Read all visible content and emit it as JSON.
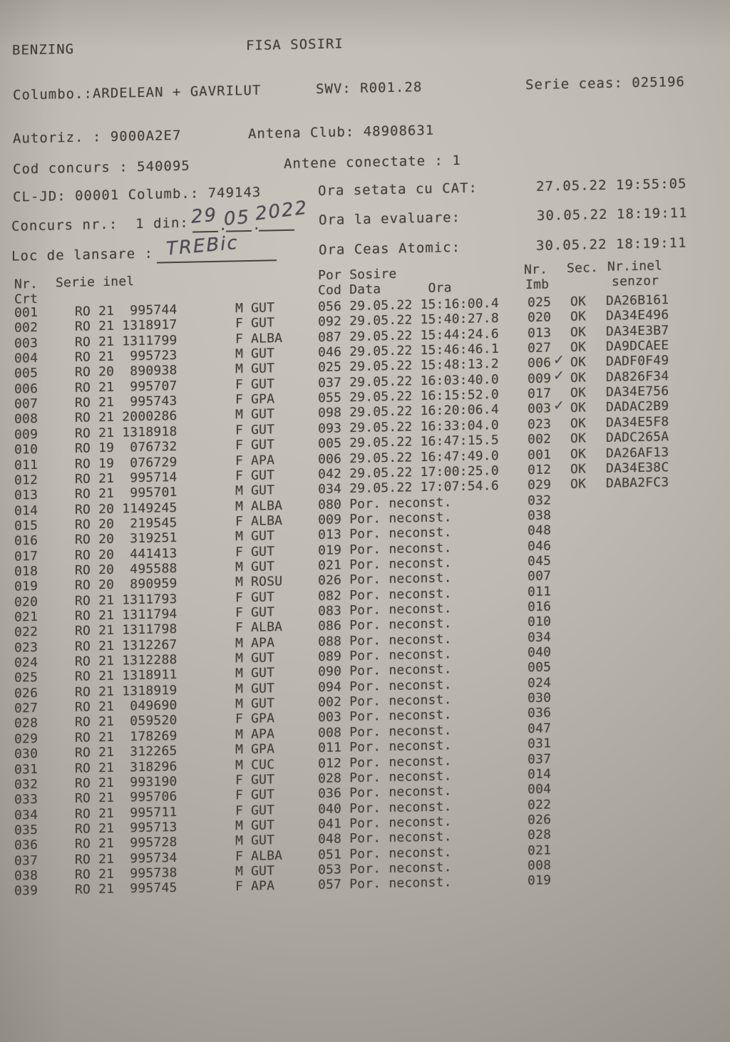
{
  "page": {
    "brand": "BENZING",
    "title": "FISA SOSIRI"
  },
  "info": {
    "columbo": "Columbo.:ARDELEAN + GAVRILUT",
    "swv": "SWV: R001.28",
    "serie_ceas": "Serie ceas: 025196",
    "autoriz": "Autoriz. : 9000A2E7",
    "antena_club": "Antena Club: 48908631",
    "cod_concurs": "Cod concurs : 540095",
    "antene_conectate": "Antene conectate : 1",
    "cl_jd": "CL-JD: 00001 Columb.: 749143",
    "ora_setata_label": "Ora setata cu CAT:",
    "ora_setata_value": "27.05.22 19:55:05",
    "concurs_nr_label": "Concurs nr.:  1 din:",
    "ora_evaluare_label": "Ora la evaluare:",
    "ora_evaluare_value": "30.05.22 18:19:11",
    "loc_lansare_label": "Loc de lansare :",
    "ora_atomic_label": "Ora Ceas Atomic:",
    "ora_atomic_value": "30.05.22 18:19:11"
  },
  "handwritten": {
    "date_day": "29",
    "date_month": "05",
    "date_year": "2022",
    "date_separator": ".",
    "loc_lansare": "TREBic",
    "check_symbol": "✓"
  },
  "table": {
    "headers": {
      "nr_line1": "Nr.",
      "nr_line2": "Crt",
      "serie": "Serie inel",
      "por_line1": "Por Sosire",
      "por_line2": "Cod Data      Ora",
      "imb_line1": "Nr.",
      "imb_line2": "Imb",
      "sec": "Sec.",
      "senzor_line1": "Nr.inel",
      "senzor_line2": "senzor"
    },
    "rows": [
      {
        "nr": "001",
        "serie": "RO 21  995744",
        "sexcol": "M GUT",
        "cod": "056",
        "status": "29.05.22 15:16:00.4",
        "imb": "025",
        "check": false,
        "sec": "OK",
        "senzor": "DA26B161"
      },
      {
        "nr": "002",
        "serie": "RO 21 1318917",
        "sexcol": "F GUT",
        "cod": "092",
        "status": "29.05.22 15:40:27.8",
        "imb": "020",
        "check": false,
        "sec": "OK",
        "senzor": "DA34E496"
      },
      {
        "nr": "003",
        "serie": "RO 21 1311799",
        "sexcol": "F ALBA",
        "cod": "087",
        "status": "29.05.22 15:44:24.6",
        "imb": "013",
        "check": false,
        "sec": "OK",
        "senzor": "DA34E3B7"
      },
      {
        "nr": "004",
        "serie": "RO 21  995723",
        "sexcol": "M GUT",
        "cod": "046",
        "status": "29.05.22 15:46:46.1",
        "imb": "027",
        "check": false,
        "sec": "OK",
        "senzor": "DA9DCAEE"
      },
      {
        "nr": "005",
        "serie": "RO 20  890938",
        "sexcol": "M GUT",
        "cod": "025",
        "status": "29.05.22 15:48:13.2",
        "imb": "006",
        "check": true,
        "sec": "OK",
        "senzor": "DADF0F49"
      },
      {
        "nr": "006",
        "serie": "RO 21  995707",
        "sexcol": "F GUT",
        "cod": "037",
        "status": "29.05.22 16:03:40.0",
        "imb": "009",
        "check": true,
        "sec": "OK",
        "senzor": "DA826F34"
      },
      {
        "nr": "007",
        "serie": "RO 21  995743",
        "sexcol": "F GPA",
        "cod": "055",
        "status": "29.05.22 16:15:52.0",
        "imb": "017",
        "check": false,
        "sec": "OK",
        "senzor": "DA34E756"
      },
      {
        "nr": "008",
        "serie": "RO 21 2000286",
        "sexcol": "M GUT",
        "cod": "098",
        "status": "29.05.22 16:20:06.4",
        "imb": "003",
        "check": true,
        "sec": "OK",
        "senzor": "DADAC2B9"
      },
      {
        "nr": "009",
        "serie": "RO 21 1318918",
        "sexcol": "F GUT",
        "cod": "093",
        "status": "29.05.22 16:33:04.0",
        "imb": "023",
        "check": false,
        "sec": "OK",
        "senzor": "DA34E5F8"
      },
      {
        "nr": "010",
        "serie": "RO 19  076732",
        "sexcol": "F GUT",
        "cod": "005",
        "status": "29.05.22 16:47:15.5",
        "imb": "002",
        "check": false,
        "sec": "OK",
        "senzor": "DADC265A"
      },
      {
        "nr": "011",
        "serie": "RO 19  076729",
        "sexcol": "F APA",
        "cod": "006",
        "status": "29.05.22 16:47:49.0",
        "imb": "001",
        "check": false,
        "sec": "OK",
        "senzor": "DA26AF13"
      },
      {
        "nr": "012",
        "serie": "RO 21  995714",
        "sexcol": "F GUT",
        "cod": "042",
        "status": "29.05.22 17:00:25.0",
        "imb": "012",
        "check": false,
        "sec": "OK",
        "senzor": "DA34E38C"
      },
      {
        "nr": "013",
        "serie": "RO 21  995701",
        "sexcol": "M GUT",
        "cod": "034",
        "status": "29.05.22 17:07:54.6",
        "imb": "029",
        "check": false,
        "sec": "OK",
        "senzor": "DABA2FC3"
      },
      {
        "nr": "014",
        "serie": "RO 20 1149245",
        "sexcol": "M ALBA",
        "cod": "080",
        "status": "Por. neconst.",
        "imb": "032",
        "check": false,
        "sec": "",
        "senzor": ""
      },
      {
        "nr": "015",
        "serie": "RO 20  219545",
        "sexcol": "F ALBA",
        "cod": "009",
        "status": "Por. neconst.",
        "imb": "038",
        "check": false,
        "sec": "",
        "senzor": ""
      },
      {
        "nr": "016",
        "serie": "RO 20  319251",
        "sexcol": "M GUT",
        "cod": "013",
        "status": "Por. neconst.",
        "imb": "048",
        "check": false,
        "sec": "",
        "senzor": ""
      },
      {
        "nr": "017",
        "serie": "RO 20  441413",
        "sexcol": "F GUT",
        "cod": "019",
        "status": "Por. neconst.",
        "imb": "046",
        "check": false,
        "sec": "",
        "senzor": ""
      },
      {
        "nr": "018",
        "serie": "RO 20  495588",
        "sexcol": "M GUT",
        "cod": "021",
        "status": "Por. neconst.",
        "imb": "045",
        "check": false,
        "sec": "",
        "senzor": ""
      },
      {
        "nr": "019",
        "serie": "RO 20  890959",
        "sexcol": "M ROSU",
        "cod": "026",
        "status": "Por. neconst.",
        "imb": "007",
        "check": false,
        "sec": "",
        "senzor": ""
      },
      {
        "nr": "020",
        "serie": "RO 21 1311793",
        "sexcol": "F GUT",
        "cod": "082",
        "status": "Por. neconst.",
        "imb": "011",
        "check": false,
        "sec": "",
        "senzor": ""
      },
      {
        "nr": "021",
        "serie": "RO 21 1311794",
        "sexcol": "F GUT",
        "cod": "083",
        "status": "Por. neconst.",
        "imb": "016",
        "check": false,
        "sec": "",
        "senzor": ""
      },
      {
        "nr": "022",
        "serie": "RO 21 1311798",
        "sexcol": "F ALBA",
        "cod": "086",
        "status": "Por. neconst.",
        "imb": "010",
        "check": false,
        "sec": "",
        "senzor": ""
      },
      {
        "nr": "023",
        "serie": "RO 21 1312267",
        "sexcol": "M APA",
        "cod": "088",
        "status": "Por. neconst.",
        "imb": "034",
        "check": false,
        "sec": "",
        "senzor": ""
      },
      {
        "nr": "024",
        "serie": "RO 21 1312288",
        "sexcol": "M GUT",
        "cod": "089",
        "status": "Por. neconst.",
        "imb": "040",
        "check": false,
        "sec": "",
        "senzor": ""
      },
      {
        "nr": "025",
        "serie": "RO 21 1318911",
        "sexcol": "M GUT",
        "cod": "090",
        "status": "Por. neconst.",
        "imb": "005",
        "check": false,
        "sec": "",
        "senzor": ""
      },
      {
        "nr": "026",
        "serie": "RO 21 1318919",
        "sexcol": "M GUT",
        "cod": "094",
        "status": "Por. neconst.",
        "imb": "024",
        "check": false,
        "sec": "",
        "senzor": ""
      },
      {
        "nr": "027",
        "serie": "RO 21  049690",
        "sexcol": "M GUT",
        "cod": "002",
        "status": "Por. neconst.",
        "imb": "030",
        "check": false,
        "sec": "",
        "senzor": ""
      },
      {
        "nr": "028",
        "serie": "RO 21  059520",
        "sexcol": "F GPA",
        "cod": "003",
        "status": "Por. neconst.",
        "imb": "036",
        "check": false,
        "sec": "",
        "senzor": ""
      },
      {
        "nr": "029",
        "serie": "RO 21  178269",
        "sexcol": "M APA",
        "cod": "008",
        "status": "Por. neconst.",
        "imb": "047",
        "check": false,
        "sec": "",
        "senzor": ""
      },
      {
        "nr": "030",
        "serie": "RO 21  312265",
        "sexcol": "M GPA",
        "cod": "011",
        "status": "Por. neconst.",
        "imb": "031",
        "check": false,
        "sec": "",
        "senzor": ""
      },
      {
        "nr": "031",
        "serie": "RO 21  318296",
        "sexcol": "M CUC",
        "cod": "012",
        "status": "Por. neconst.",
        "imb": "037",
        "check": false,
        "sec": "",
        "senzor": ""
      },
      {
        "nr": "032",
        "serie": "RO 21  993190",
        "sexcol": "F GUT",
        "cod": "028",
        "status": "Por. neconst.",
        "imb": "014",
        "check": false,
        "sec": "",
        "senzor": ""
      },
      {
        "nr": "033",
        "serie": "RO 21  995706",
        "sexcol": "F GUT",
        "cod": "036",
        "status": "Por. neconst.",
        "imb": "004",
        "check": false,
        "sec": "",
        "senzor": ""
      },
      {
        "nr": "034",
        "serie": "RO 21  995711",
        "sexcol": "F GUT",
        "cod": "040",
        "status": "Por. neconst.",
        "imb": "022",
        "check": false,
        "sec": "",
        "senzor": ""
      },
      {
        "nr": "035",
        "serie": "RO 21  995713",
        "sexcol": "M GUT",
        "cod": "041",
        "status": "Por. neconst.",
        "imb": "026",
        "check": false,
        "sec": "",
        "senzor": ""
      },
      {
        "nr": "036",
        "serie": "RO 21  995728",
        "sexcol": "M GUT",
        "cod": "048",
        "status": "Por. neconst.",
        "imb": "028",
        "check": false,
        "sec": "",
        "senzor": ""
      },
      {
        "nr": "037",
        "serie": "RO 21  995734",
        "sexcol": "F ALBA",
        "cod": "051",
        "status": "Por. neconst.",
        "imb": "021",
        "check": false,
        "sec": "",
        "senzor": ""
      },
      {
        "nr": "038",
        "serie": "RO 21  995738",
        "sexcol": "M GUT",
        "cod": "053",
        "status": "Por. neconst.",
        "imb": "008",
        "check": false,
        "sec": "",
        "senzor": ""
      },
      {
        "nr": "039",
        "serie": "RO 21  995745",
        "sexcol": "F APA",
        "cod": "057",
        "status": "Por. neconst.",
        "imb": "019",
        "check": false,
        "sec": "",
        "senzor": ""
      }
    ]
  }
}
